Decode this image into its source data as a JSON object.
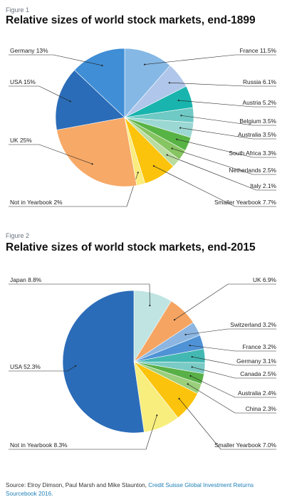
{
  "figures": [
    {
      "label": "Figure 1",
      "title": "Relative sizes of world stock markets, end-1899"
    },
    {
      "label": "Figure 2",
      "title": "Relative sizes of world stock markets, end-2015"
    }
  ],
  "source": {
    "prefix": "Source: Elroy Dimson, Paul Marsh and Mike Staunton, ",
    "link": "Credit Suisse Global Investment Returns Sourcebook 2016."
  },
  "chart_data": [
    {
      "type": "pie",
      "title": "Relative sizes of world stock markets, end-1899",
      "slices": [
        {
          "name": "France",
          "label": "France 11.5%",
          "value": 11.5,
          "color": "#85b8e5"
        },
        {
          "name": "Russia",
          "label": "Russia 6.1%",
          "value": 6.1,
          "color": "#b0c6ea"
        },
        {
          "name": "Austria",
          "label": "Austria 5.2%",
          "value": 5.2,
          "color": "#1ab4ae"
        },
        {
          "name": "Belgium",
          "label": "Belgium 3.5%",
          "value": 3.5,
          "color": "#6fc9c4"
        },
        {
          "name": "Australia",
          "label": "Australia 3.5%",
          "value": 3.5,
          "color": "#9bd7d3"
        },
        {
          "name": "South Africa",
          "label": "South Africa 3.3%",
          "value": 3.3,
          "color": "#58b345"
        },
        {
          "name": "Netherlands",
          "label": "Netherlands 2.5%",
          "value": 2.5,
          "color": "#86c561"
        },
        {
          "name": "Italy",
          "label": "Italy 2.1%",
          "value": 2.1,
          "color": "#b9dca0"
        },
        {
          "name": "Smaller Yearbook",
          "label": "Smaller Yearbook 7.7%",
          "value": 7.7,
          "color": "#fcc30c"
        },
        {
          "name": "Not in Yearbook",
          "label": "Not in Yearbook 2%",
          "value": 2.0,
          "color": "#faec7e"
        },
        {
          "name": "UK",
          "label": "UK 25%",
          "value": 25.0,
          "color": "#f7a967"
        },
        {
          "name": "USA",
          "label": "USA 15%",
          "value": 15.0,
          "color": "#2b6cb8"
        },
        {
          "name": "Germany",
          "label": "Germany 13%",
          "value": 13.0,
          "color": "#3f8ed6"
        }
      ]
    },
    {
      "type": "pie",
      "title": "Relative sizes of world stock markets, end-2015",
      "slices": [
        {
          "name": "Japan",
          "label": "Japan 8.8%",
          "value": 8.8,
          "color": "#bfe4e2"
        },
        {
          "name": "UK",
          "label": "UK 6.9%",
          "value": 6.9,
          "color": "#f5a462"
        },
        {
          "name": "Switzerland",
          "label": "Switzerland 3.2%",
          "value": 3.2,
          "color": "#8cb6e1"
        },
        {
          "name": "France",
          "label": "France 3.2%",
          "value": 3.2,
          "color": "#4f93d6"
        },
        {
          "name": "Germany",
          "label": "Germany 3.1%",
          "value": 3.1,
          "color": "#43b8b2"
        },
        {
          "name": "Canada",
          "label": "Canada 2.5%",
          "value": 2.5,
          "color": "#7acbc5"
        },
        {
          "name": "Australia",
          "label": "Australia 2.4%",
          "value": 2.4,
          "color": "#58b047"
        },
        {
          "name": "China",
          "label": "China 2.3%",
          "value": 2.3,
          "color": "#9bcf7c"
        },
        {
          "name": "Smaller Yearbook",
          "label": "Smaller Yearbook 7.0%",
          "value": 7.0,
          "color": "#fcc30c"
        },
        {
          "name": "Not in Yearbook",
          "label": "Not in Yearbook 8.3%",
          "value": 8.3,
          "color": "#f8ee7e"
        },
        {
          "name": "USA",
          "label": "USA 52.3%",
          "value": 52.3,
          "color": "#2b6cb8"
        }
      ]
    }
  ]
}
